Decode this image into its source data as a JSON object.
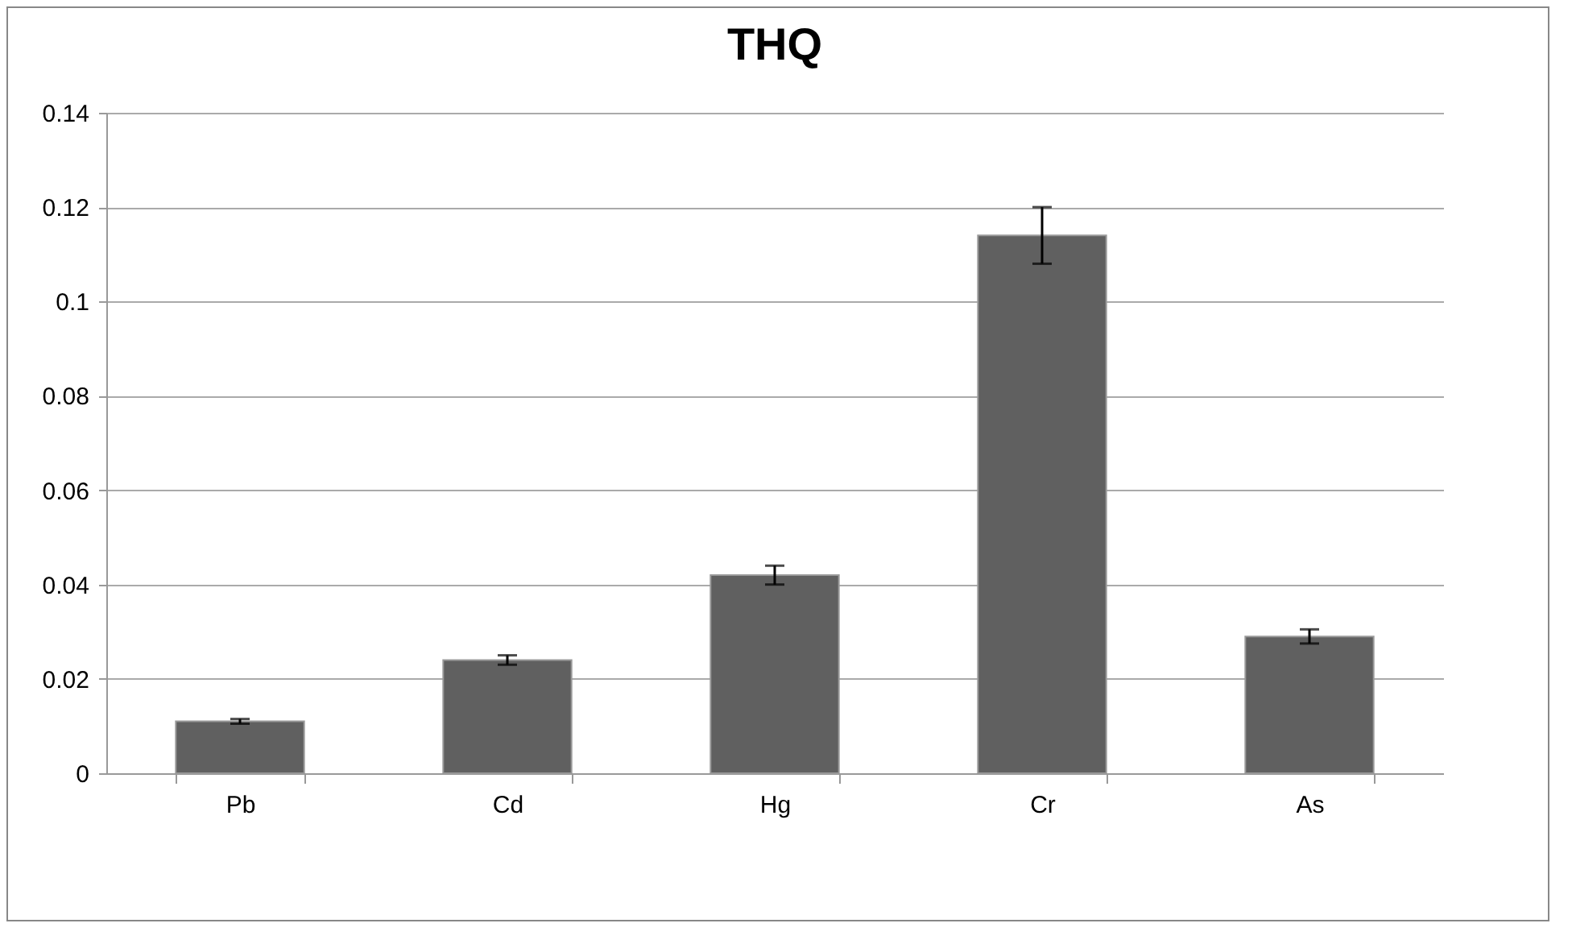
{
  "chart_data": {
    "type": "bar",
    "title": "THQ",
    "categories": [
      "Pb",
      "Cd",
      "Hg",
      "Cr",
      "As"
    ],
    "values": [
      0.011,
      0.024,
      0.042,
      0.114,
      0.029
    ],
    "errors": [
      0.0005,
      0.001,
      0.002,
      0.006,
      0.0015
    ],
    "color": "#606060",
    "ylim": [
      0,
      0.14
    ],
    "yticks": [
      0,
      0.02,
      0.04,
      0.06,
      0.08,
      0.1,
      0.12,
      0.14
    ],
    "grid": "y"
  }
}
